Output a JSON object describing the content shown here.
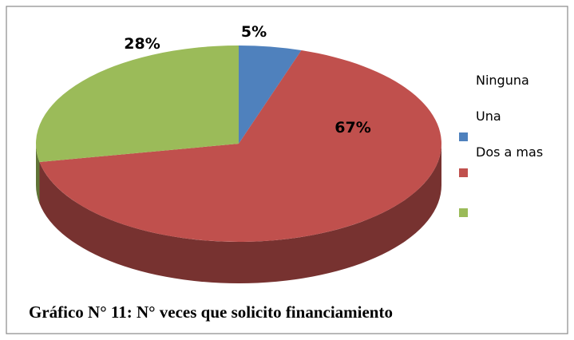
{
  "chart_data": {
    "type": "pie",
    "categories": [
      "Ninguna",
      "Una",
      "Dos a mas"
    ],
    "values": [
      5,
      67,
      28
    ],
    "value_labels": [
      "5%",
      "67%",
      "28%"
    ],
    "series": [
      {
        "name": "Ninguna",
        "color": "#4f81bd"
      },
      {
        "name": "Una",
        "color": "#c0504d"
      },
      {
        "name": "Dos a mas",
        "color": "#9bbb59"
      }
    ],
    "caption": "Gráfico N° 11: N° veces que solicito financiamiento"
  }
}
